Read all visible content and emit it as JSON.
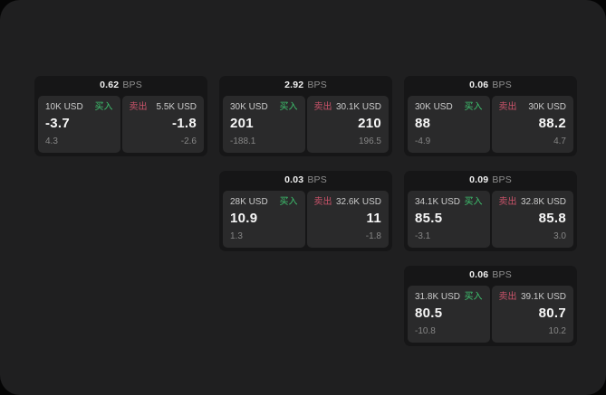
{
  "labels": {
    "buy": "买入",
    "sell": "卖出",
    "bps_unit": "BPS"
  },
  "colors": {
    "buy_green": "#3ec46f",
    "sell_red": "#c9536a",
    "window_bg": "#1f1f20",
    "card_bg": "#161617",
    "tile_bg": "#2a2a2b"
  },
  "cards": [
    {
      "col": 1,
      "row": 1,
      "bps": "0.62",
      "buy": {
        "amount": "10K USD",
        "value": "-3.7",
        "sub": "4.3"
      },
      "sell": {
        "amount": "5.5K USD",
        "value": "-1.8",
        "sub": "-2.6"
      }
    },
    {
      "col": 2,
      "row": 1,
      "bps": "2.92",
      "buy": {
        "amount": "30K USD",
        "value": "201",
        "sub": "-188.1"
      },
      "sell": {
        "amount": "30.1K USD",
        "value": "210",
        "sub": "196.5"
      }
    },
    {
      "col": 3,
      "row": 1,
      "bps": "0.06",
      "buy": {
        "amount": "30K USD",
        "value": "88",
        "sub": "-4.9"
      },
      "sell": {
        "amount": "30K USD",
        "value": "88.2",
        "sub": "4.7"
      }
    },
    {
      "col": 2,
      "row": 2,
      "bps": "0.03",
      "buy": {
        "amount": "28K USD",
        "value": "10.9",
        "sub": "1.3"
      },
      "sell": {
        "amount": "32.6K USD",
        "value": "11",
        "sub": "-1.8"
      }
    },
    {
      "col": 3,
      "row": 2,
      "bps": "0.09",
      "buy": {
        "amount": "34.1K USD",
        "value": "85.5",
        "sub": "-3.1"
      },
      "sell": {
        "amount": "32.8K USD",
        "value": "85.8",
        "sub": "3.0"
      }
    },
    {
      "col": 3,
      "row": 3,
      "bps": "0.06",
      "buy": {
        "amount": "31.8K USD",
        "value": "80.5",
        "sub": "-10.8"
      },
      "sell": {
        "amount": "39.1K USD",
        "value": "80.7",
        "sub": "10.2"
      }
    }
  ]
}
